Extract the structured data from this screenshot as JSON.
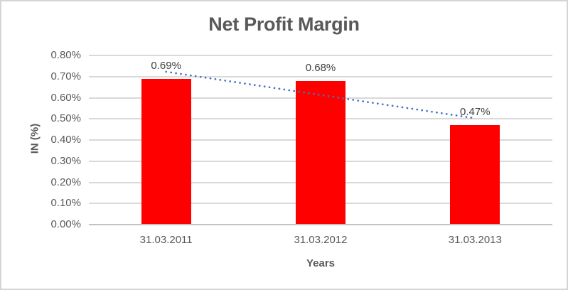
{
  "chart_data": {
    "type": "bar",
    "title": "Net Profit Margin",
    "xlabel": "Years",
    "ylabel": "IN (%)",
    "categories": [
      "31.03.2011",
      "31.03.2012",
      "31.03.2013"
    ],
    "values": [
      0.69,
      0.68,
      0.47
    ],
    "data_labels": [
      "0.69%",
      "0.68%",
      "0.47%"
    ],
    "yticks": [
      "0.80%",
      "0.70%",
      "0.60%",
      "0.50%",
      "0.40%",
      "0.30%",
      "0.20%",
      "0.10%",
      "0.00%"
    ],
    "ylim": [
      0,
      0.8
    ],
    "ytick_step": 0.1,
    "grid": true,
    "legend": false,
    "trendline": {
      "type": "linear",
      "style": "dotted",
      "start_value": 0.723,
      "end_value": 0.503
    },
    "colors": {
      "bar": "#ff0000",
      "trendline": "#4472c4",
      "title_text": "#595959",
      "tick_text": "#595959",
      "data_label_text": "#404040",
      "gridline": "#d9d9d9",
      "axis_line": "#c3c3c3",
      "border": "#d5d5d5",
      "background": "#ffffff"
    }
  }
}
